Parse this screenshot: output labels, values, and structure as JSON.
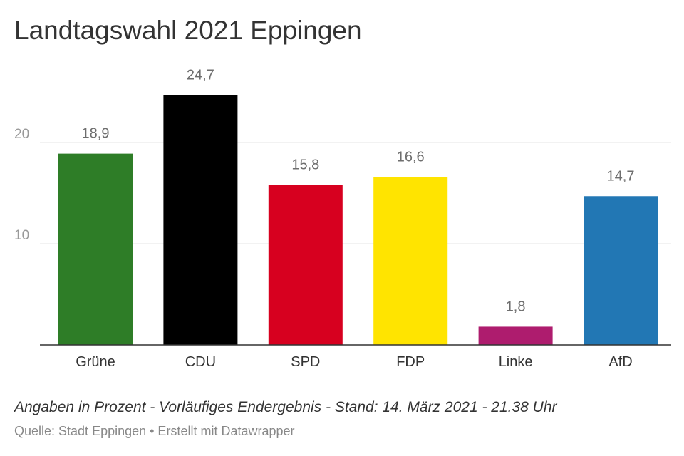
{
  "chart_data": {
    "type": "bar",
    "title": "Landtagswahl 2021 Eppingen",
    "categories": [
      "Grüne",
      "CDU",
      "SPD",
      "FDP",
      "Linke",
      "AfD"
    ],
    "values": [
      18.9,
      24.7,
      15.8,
      16.6,
      1.8,
      14.7
    ],
    "value_labels": [
      "18,9",
      "24,7",
      "15,8",
      "16,6",
      "1,8",
      "14,7"
    ],
    "colors": [
      "#2e7d27",
      "#000000",
      "#d7001f",
      "#ffe400",
      "#ae1c6e",
      "#2277b4"
    ],
    "yticks": [
      10,
      20
    ],
    "ytick_labels": [
      "10",
      "20"
    ],
    "ylim": [
      0,
      27
    ],
    "xlabel": "",
    "ylabel": "",
    "grid": true,
    "legend": "none"
  },
  "notes": "Angaben in Prozent - Vorläufiges Endergebnis - Stand: 14. März 2021 - 21.38 Uhr",
  "source": "Quelle: Stadt Eppingen • Erstellt mit Datawrapper",
  "colors": {
    "gridline": "#e5e5e5",
    "baseline": "#333333",
    "text": "#333333",
    "muted": "#888888"
  }
}
